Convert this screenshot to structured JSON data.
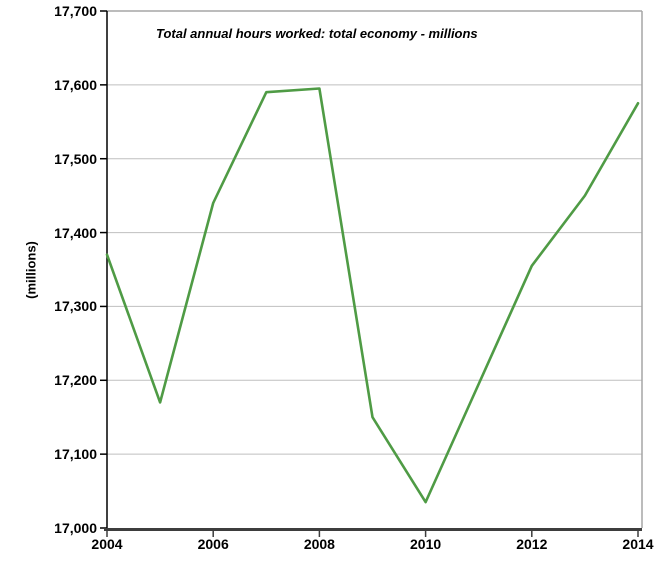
{
  "chart_data": {
    "type": "line",
    "title": "Total annual hours worked: total economy - millions",
    "ylabel": "(millions)",
    "x": [
      2004,
      2005,
      2006,
      2007,
      2008,
      2009,
      2010,
      2011,
      2012,
      2013,
      2014
    ],
    "series": [
      {
        "name": "Total annual hours worked: total economy",
        "values": [
          17370,
          17170,
          17440,
          17590,
          17595,
          17150,
          17035,
          17195,
          17355,
          17450,
          17575
        ]
      }
    ],
    "ylim": [
      17000,
      17700
    ],
    "ytick_step": 100,
    "ytick_labels": [
      "17,000",
      "17,100",
      "17,200",
      "17,300",
      "17,400",
      "17,500",
      "17,600",
      "17,700"
    ],
    "xticks": [
      2004,
      2006,
      2008,
      2010,
      2012,
      2014
    ],
    "xtick_labels": [
      "2004",
      "2006",
      "2008",
      "2010",
      "2012",
      "2014"
    ],
    "grid": "horizontal-only",
    "legend_position": "none"
  },
  "colors": {
    "line": "#4f9b45",
    "gridline": "#bfbfbf",
    "plot_border": "#a6a6a6",
    "y_axis": "#000000",
    "x_axis": "#3d3d3d",
    "text": "#000000",
    "background": "#ffffff"
  }
}
